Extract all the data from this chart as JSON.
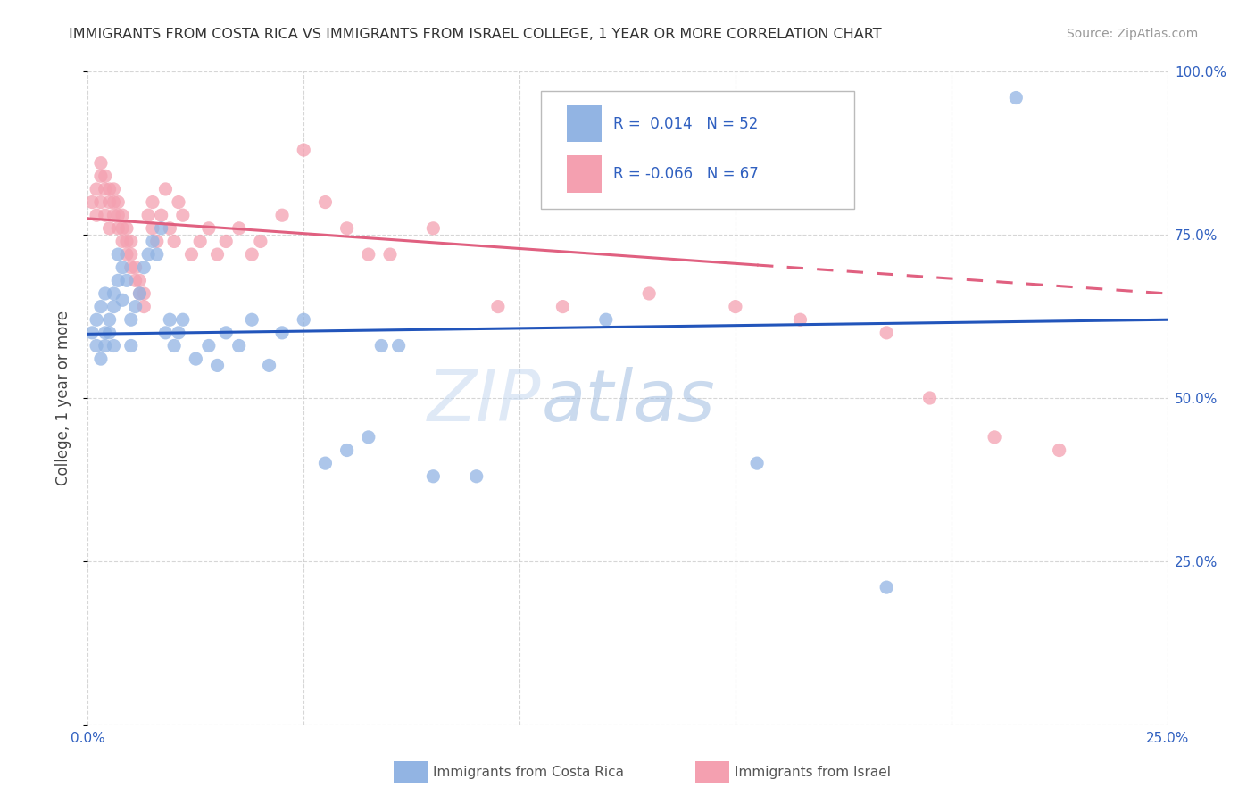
{
  "title": "IMMIGRANTS FROM COSTA RICA VS IMMIGRANTS FROM ISRAEL COLLEGE, 1 YEAR OR MORE CORRELATION CHART",
  "source": "Source: ZipAtlas.com",
  "ylabel": "College, 1 year or more",
  "xmin": 0.0,
  "xmax": 0.25,
  "ymin": 0.0,
  "ymax": 1.0,
  "legend_r_costa_rica": "0.014",
  "legend_n_costa_rica": "52",
  "legend_r_israel": "-0.066",
  "legend_n_israel": "67",
  "color_costa_rica": "#92b4e3",
  "color_israel": "#f4a0b0",
  "trendline_costa_rica_color": "#2255bb",
  "trendline_israel_color": "#e06080",
  "watermark_zip": "ZIP",
  "watermark_atlas": "atlas",
  "costa_rica_x": [
    0.001,
    0.002,
    0.002,
    0.003,
    0.003,
    0.004,
    0.004,
    0.004,
    0.005,
    0.005,
    0.006,
    0.006,
    0.006,
    0.007,
    0.007,
    0.008,
    0.008,
    0.009,
    0.01,
    0.01,
    0.011,
    0.012,
    0.013,
    0.014,
    0.015,
    0.016,
    0.017,
    0.018,
    0.019,
    0.02,
    0.021,
    0.022,
    0.025,
    0.028,
    0.03,
    0.032,
    0.035,
    0.038,
    0.042,
    0.045,
    0.05,
    0.055,
    0.06,
    0.065,
    0.068,
    0.072,
    0.08,
    0.09,
    0.12,
    0.155,
    0.185,
    0.215
  ],
  "costa_rica_y": [
    0.6,
    0.58,
    0.62,
    0.56,
    0.64,
    0.6,
    0.58,
    0.66,
    0.62,
    0.6,
    0.58,
    0.64,
    0.66,
    0.72,
    0.68,
    0.7,
    0.65,
    0.68,
    0.62,
    0.58,
    0.64,
    0.66,
    0.7,
    0.72,
    0.74,
    0.72,
    0.76,
    0.6,
    0.62,
    0.58,
    0.6,
    0.62,
    0.56,
    0.58,
    0.55,
    0.6,
    0.58,
    0.62,
    0.55,
    0.6,
    0.62,
    0.4,
    0.42,
    0.44,
    0.58,
    0.58,
    0.38,
    0.38,
    0.62,
    0.4,
    0.21,
    0.96
  ],
  "israel_x": [
    0.001,
    0.002,
    0.002,
    0.003,
    0.003,
    0.003,
    0.004,
    0.004,
    0.004,
    0.005,
    0.005,
    0.005,
    0.006,
    0.006,
    0.006,
    0.007,
    0.007,
    0.007,
    0.008,
    0.008,
    0.008,
    0.009,
    0.009,
    0.009,
    0.01,
    0.01,
    0.01,
    0.011,
    0.011,
    0.012,
    0.012,
    0.013,
    0.013,
    0.014,
    0.015,
    0.015,
    0.016,
    0.017,
    0.018,
    0.019,
    0.02,
    0.021,
    0.022,
    0.024,
    0.026,
    0.028,
    0.03,
    0.032,
    0.035,
    0.038,
    0.04,
    0.045,
    0.05,
    0.055,
    0.06,
    0.065,
    0.07,
    0.08,
    0.095,
    0.11,
    0.13,
    0.15,
    0.165,
    0.185,
    0.195,
    0.21,
    0.225
  ],
  "israel_y": [
    0.8,
    0.82,
    0.78,
    0.84,
    0.86,
    0.8,
    0.82,
    0.84,
    0.78,
    0.8,
    0.82,
    0.76,
    0.78,
    0.8,
    0.82,
    0.76,
    0.78,
    0.8,
    0.74,
    0.76,
    0.78,
    0.72,
    0.74,
    0.76,
    0.7,
    0.72,
    0.74,
    0.68,
    0.7,
    0.66,
    0.68,
    0.64,
    0.66,
    0.78,
    0.8,
    0.76,
    0.74,
    0.78,
    0.82,
    0.76,
    0.74,
    0.8,
    0.78,
    0.72,
    0.74,
    0.76,
    0.72,
    0.74,
    0.76,
    0.72,
    0.74,
    0.78,
    0.88,
    0.8,
    0.76,
    0.72,
    0.72,
    0.76,
    0.64,
    0.64,
    0.66,
    0.64,
    0.62,
    0.6,
    0.5,
    0.44,
    0.42
  ],
  "trendline_cr_x0": 0.0,
  "trendline_cr_x1": 0.25,
  "trendline_cr_y0": 0.598,
  "trendline_cr_y1": 0.62,
  "trendline_isr_x0": 0.0,
  "trendline_isr_x1": 0.25,
  "trendline_isr_y0": 0.775,
  "trendline_isr_y1": 0.66,
  "trendline_isr_solid_end": 0.155,
  "trendline_isr_dash_start": 0.155
}
